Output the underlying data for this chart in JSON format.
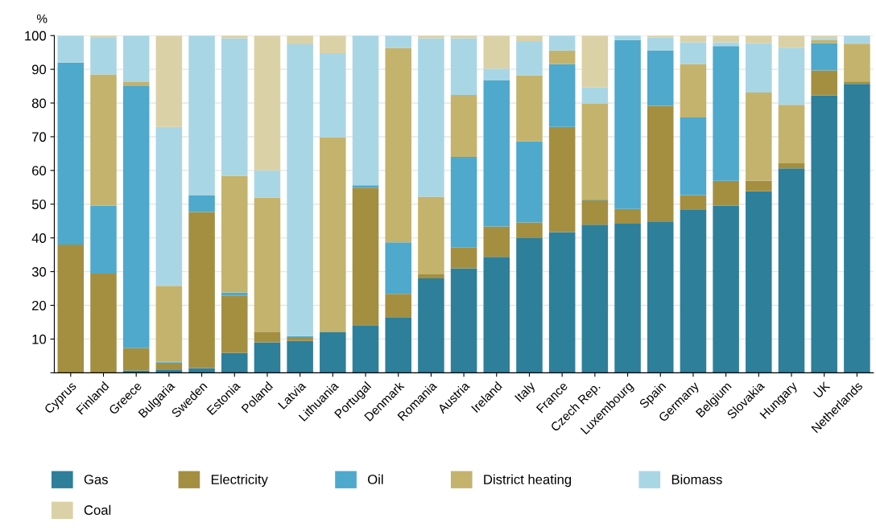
{
  "chart_data": {
    "type": "bar",
    "stacked": true,
    "ylabel": "%",
    "categories": [
      "Cyprus",
      "Finland",
      "Greece",
      "Bulgaria",
      "Sweden",
      "Estonia",
      "Poland",
      "Latvia",
      "Lithuania",
      "Portugal",
      "Denmark",
      "Romania",
      "Austria",
      "Ireland",
      "Italy",
      "France",
      "Czech Rep.",
      "Luxembourg",
      "Spain",
      "Germany",
      "Belgium",
      "Slovakia",
      "Hungary",
      "UK",
      "Netherlands"
    ],
    "series": [
      {
        "name": "Gas",
        "color": "#2e7f9a",
        "values": [
          0,
          0,
          0.7,
          1,
          1.4,
          5.9,
          9,
          9.5,
          12,
          14.1,
          16.5,
          28,
          31,
          34.4,
          39.9,
          41.7,
          43.9,
          44.2,
          44.7,
          48.3,
          49.6,
          53.8,
          60.6,
          82.3,
          85.7
        ]
      },
      {
        "name": "Electricity",
        "color": "#a48f41",
        "values": [
          38,
          29.4,
          6.6,
          2,
          46.3,
          16.9,
          3,
          1.1,
          0.2,
          40.8,
          6.9,
          1.2,
          6.1,
          9,
          4.7,
          31.2,
          7.3,
          4.4,
          34.5,
          4.4,
          7.3,
          3.1,
          1.5,
          7.4,
          0.7
        ]
      },
      {
        "name": "Oil",
        "color": "#4ea9cc",
        "values": [
          54,
          20.1,
          77.7,
          0.3,
          5,
          1,
          0,
          0.3,
          0,
          0.7,
          15.3,
          0,
          26.9,
          43.4,
          24,
          18.6,
          0.2,
          50.1,
          16.3,
          23,
          40,
          0,
          0,
          8.1,
          0
        ]
      },
      {
        "name": "District heating",
        "color": "#c4b36d",
        "values": [
          0,
          39,
          1.2,
          22.5,
          0,
          34.6,
          39.9,
          0,
          57.6,
          0,
          57.6,
          23,
          18.4,
          0,
          19.6,
          4.1,
          28.5,
          0,
          0,
          15.8,
          0,
          26.2,
          17.4,
          0.9,
          11.2
        ]
      },
      {
        "name": "Biomass",
        "color": "#a9d6e5",
        "values": [
          8,
          11,
          13.8,
          47.1,
          47.3,
          40.8,
          8.1,
          86.5,
          25,
          44.4,
          3.7,
          47,
          16.8,
          3.4,
          10.2,
          4.4,
          4.7,
          1.3,
          3.9,
          6.5,
          1.1,
          14.6,
          16.9,
          0.6,
          2.4
        ]
      },
      {
        "name": "Coal",
        "color": "#dbd1a6",
        "values": [
          0,
          0.5,
          0,
          27.1,
          0,
          0.8,
          40,
          2.6,
          5.2,
          0,
          0,
          0.8,
          0.8,
          9.8,
          1.6,
          0,
          15.4,
          0,
          0.6,
          2,
          2,
          2.3,
          3.6,
          0.7,
          0
        ]
      }
    ],
    "ylim": [
      0,
      100
    ],
    "yticks": [
      {
        "value": 0,
        "label": null
      },
      10,
      20,
      30,
      40,
      50,
      60,
      70,
      80,
      90,
      100
    ],
    "grid": "y",
    "legend": "bottom"
  }
}
